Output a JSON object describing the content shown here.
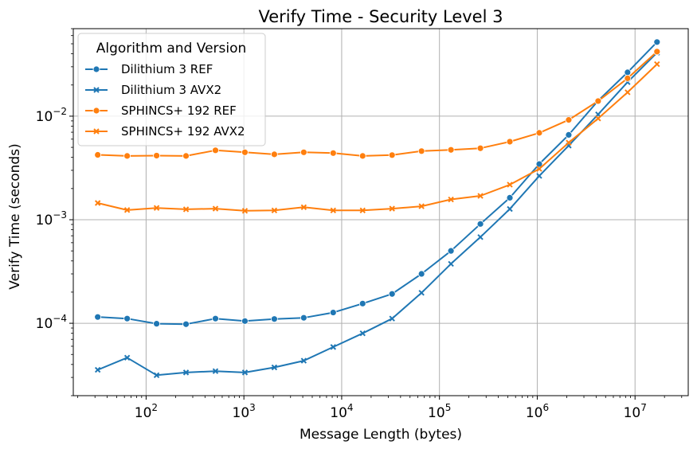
{
  "chart_data": {
    "type": "line",
    "title": "Verify Time - Security Level 3",
    "xlabel": "Message Length (bytes)",
    "ylabel": "Verify Time (seconds)",
    "xscale": "log",
    "yscale": "log",
    "xlim": [
      18,
      35000000
    ],
    "ylim": [
      2e-05,
      0.07
    ],
    "x_tick_labels": [
      {
        "base": "10",
        "exp": "2"
      },
      {
        "base": "10",
        "exp": "3"
      },
      {
        "base": "10",
        "exp": "4"
      },
      {
        "base": "10",
        "exp": "5"
      },
      {
        "base": "10",
        "exp": "6"
      },
      {
        "base": "10",
        "exp": "7"
      }
    ],
    "y_tick_labels": [
      {
        "base": "10",
        "exp": "−4"
      },
      {
        "base": "10",
        "exp": "−3"
      },
      {
        "base": "10",
        "exp": "−2"
      }
    ],
    "grid": true,
    "legend": {
      "title": "Algorithm and Version",
      "position": "top-left"
    },
    "x": [
      32,
      64,
      128,
      256,
      512,
      1024,
      2048,
      4096,
      8192,
      16384,
      32768,
      65536,
      131072,
      262144,
      524288,
      1048576,
      2097152,
      4194304,
      8388608,
      16777216
    ],
    "series": [
      {
        "name": "Dilithium 3 REF",
        "color": "#1f77b4",
        "marker": "circle",
        "values": [
          0.000115,
          0.000111,
          9.9e-05,
          9.8e-05,
          0.000111,
          0.000105,
          0.00011,
          0.000113,
          0.000127,
          0.000155,
          0.000192,
          0.0003,
          0.0005,
          0.00091,
          0.00163,
          0.00345,
          0.0066,
          0.0141,
          0.0265,
          0.052
        ]
      },
      {
        "name": "Dilithium 3 AVX2",
        "color": "#1f77b4",
        "marker": "x",
        "values": [
          3.55e-05,
          4.65e-05,
          3.15e-05,
          3.35e-05,
          3.45e-05,
          3.35e-05,
          3.75e-05,
          4.35e-05,
          5.9e-05,
          8e-05,
          0.000111,
          0.000197,
          0.000375,
          0.00068,
          0.00127,
          0.00265,
          0.0052,
          0.0104,
          0.0213,
          0.041
        ]
      },
      {
        "name": "SPHINCS+ 192 REF",
        "color": "#ff7f0e",
        "marker": "circle",
        "values": [
          0.00423,
          0.00413,
          0.00416,
          0.00413,
          0.00468,
          0.00448,
          0.00428,
          0.00448,
          0.0044,
          0.00413,
          0.00421,
          0.0046,
          0.00473,
          0.0049,
          0.00567,
          0.0069,
          0.0092,
          0.014,
          0.0232,
          0.042
        ]
      },
      {
        "name": "SPHINCS+ 192 AVX2",
        "color": "#ff7f0e",
        "marker": "x",
        "values": [
          0.00145,
          0.00124,
          0.0013,
          0.00126,
          0.00128,
          0.00122,
          0.00123,
          0.00132,
          0.00123,
          0.00123,
          0.00128,
          0.00135,
          0.00157,
          0.0017,
          0.00218,
          0.0031,
          0.00555,
          0.0095,
          0.017,
          0.0318
        ]
      }
    ]
  }
}
